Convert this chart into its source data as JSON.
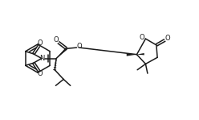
{
  "bg_color": "#ffffff",
  "line_color": "#1a1a1a",
  "lw": 1.1,
  "fig_w": 2.48,
  "fig_h": 1.49,
  "dpi": 100,
  "xlim": [
    0,
    10
  ],
  "ylim": [
    0,
    6.04
  ]
}
